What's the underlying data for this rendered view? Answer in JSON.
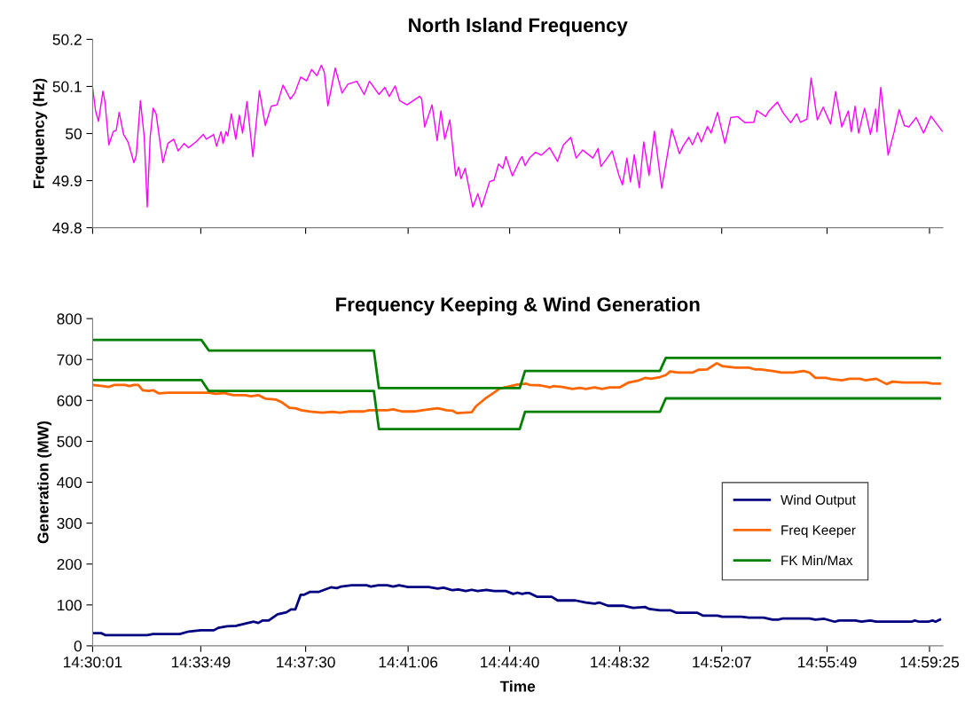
{
  "chart_data": [
    {
      "type": "line",
      "title": "North Island Frequency",
      "ylabel": "Frequency (Hz)",
      "tick_labels": "y",
      "xlim": [
        14.50028,
        14.99806
      ],
      "ylim": [
        49.8,
        50.2
      ],
      "yticks": [
        49.8,
        49.9,
        50,
        50.1,
        50.2
      ],
      "xticks": [
        {
          "value": 14.50028,
          "label": null
        },
        {
          "value": 14.56361,
          "label": null
        },
        {
          "value": 14.625,
          "label": null
        },
        {
          "value": 14.685,
          "label": null
        },
        {
          "value": 14.74444,
          "label": null
        },
        {
          "value": 14.80889,
          "label": null
        },
        {
          "value": 14.86861,
          "label": null
        },
        {
          "value": 14.93028,
          "label": null
        },
        {
          "value": 14.99028,
          "label": null
        }
      ],
      "series": [
        {
          "color": "#ff00ff",
          "x": [
            14.50028,
            14.50199,
            14.50372,
            14.50631,
            14.50752,
            14.50977,
            14.51236,
            14.51409,
            14.51581,
            14.51841,
            14.521,
            14.52446,
            14.52584,
            14.52826,
            14.53051,
            14.53224,
            14.53397,
            14.5357,
            14.53742,
            14.5414,
            14.54434,
            14.54779,
            14.55038,
            14.55384,
            14.55643,
            14.56076,
            14.56508,
            14.56681,
            14.57113,
            14.57286,
            14.57544,
            14.57665,
            14.57838,
            14.57942,
            14.58149,
            14.58409,
            14.58616,
            14.58806,
            14.59066,
            14.59411,
            14.59792,
            14.60138,
            14.60483,
            14.60828,
            14.61174,
            14.61606,
            14.61866,
            14.62212,
            14.62557,
            14.6285,
            14.63161,
            14.63421,
            14.63594,
            14.63801,
            14.64234,
            14.64631,
            14.64977,
            14.65495,
            14.65927,
            14.66239,
            14.66791,
            14.67137,
            14.67397,
            14.67742,
            14.68002,
            14.68434,
            14.69177,
            14.69297,
            14.6947,
            14.69903,
            14.70197,
            14.70421,
            14.70646,
            14.7094,
            14.71286,
            14.71459,
            14.71597,
            14.71838,
            14.72287,
            14.72582,
            14.72806,
            14.73273,
            14.73532,
            14.73792,
            14.74051,
            14.74224,
            14.74604,
            14.75054,
            14.75175,
            14.75347,
            14.75607,
            14.75952,
            14.76297,
            14.76781,
            14.77248,
            14.77594,
            14.78026,
            14.78337,
            14.78717,
            14.79322,
            14.79616,
            14.79789,
            14.801,
            14.80446,
            14.80827,
            14.81051,
            14.8131,
            14.81517,
            14.81742,
            14.82036,
            14.82295,
            14.82606,
            14.82917,
            14.83349,
            14.83937,
            14.84387,
            14.84594,
            14.84939,
            14.85147,
            14.85458,
            14.85666,
            14.86028,
            14.86236,
            14.86617,
            14.87048,
            14.87394,
            14.87791,
            14.88223,
            14.88742,
            14.88915,
            14.89434,
            14.89607,
            14.90125,
            14.90436,
            14.90902,
            14.91248,
            14.91473,
            14.91853,
            14.92095,
            14.92459,
            14.92804,
            14.93236,
            14.9353,
            14.93892,
            14.94273,
            14.94446,
            14.9467,
            14.94878,
            14.95224,
            14.9557,
            14.95881,
            14.95949,
            14.96174,
            14.96606,
            14.96952,
            14.97246,
            14.97557,
            14.97816,
            14.98249,
            14.9868,
            14.99112,
            14.99458,
            14.99769
          ],
          "values": [
            50.098,
            50.048,
            50.026,
            50.09,
            50.067,
            49.976,
            50.004,
            50.007,
            50.045,
            49.998,
            49.982,
            49.938,
            49.954,
            50.07,
            49.992,
            49.844,
            49.992,
            50.054,
            50.042,
            49.938,
            49.979,
            49.988,
            49.963,
            49.979,
            49.97,
            49.982,
            49.998,
            49.988,
            49.998,
            49.973,
            50.004,
            49.979,
            50.004,
            49.995,
            50.042,
            49.988,
            50.039,
            50.001,
            50.068,
            49.951,
            50.091,
            50.017,
            50.058,
            50.061,
            50.103,
            50.073,
            50.086,
            50.12,
            50.112,
            50.136,
            50.123,
            50.145,
            50.13,
            50.059,
            50.139,
            50.086,
            50.105,
            50.111,
            50.083,
            50.111,
            50.083,
            50.098,
            50.079,
            50.101,
            50.07,
            50.061,
            50.079,
            50.073,
            50.014,
            50.061,
            49.985,
            50.048,
            49.988,
            50.029,
            49.91,
            49.929,
            49.904,
            49.926,
            49.844,
            49.872,
            49.844,
            49.898,
            49.901,
            49.935,
            49.926,
            49.951,
            49.91,
            49.945,
            49.951,
            49.932,
            49.948,
            49.96,
            49.954,
            49.97,
            49.941,
            49.976,
            49.992,
            49.948,
            49.965,
            49.948,
            49.968,
            49.93,
            49.945,
            49.963,
            49.913,
            49.891,
            49.948,
            49.897,
            49.955,
            49.885,
            49.982,
            49.911,
            50.005,
            49.884,
            50.01,
            49.957,
            49.973,
            49.992,
            49.976,
            50.002,
            49.982,
            50.015,
            50.001,
            50.045,
            49.979,
            50.034,
            50.036,
            50.023,
            50.024,
            50.049,
            50.036,
            50.047,
            50.067,
            50.045,
            50.023,
            50.042,
            50.024,
            50.031,
            50.118,
            50.029,
            50.056,
            50.02,
            50.089,
            50.014,
            50.048,
            50.004,
            50.058,
            50.001,
            50.054,
            49.998,
            50.052,
            50.004,
            50.098,
            49.954,
            50.003,
            50.051,
            50.017,
            50.014,
            50.034,
            50.001,
            50.037,
            50.02,
            50.005
          ]
        }
      ]
    },
    {
      "type": "line",
      "title": "Frequency Keeping & Wind Generation",
      "xlabel": "Time",
      "ylabel": "Generation (MW)",
      "legend": "center right",
      "xlim": [
        14.50028,
        14.99806
      ],
      "ylim": [
        0,
        800
      ],
      "yticks": [
        0,
        100,
        200,
        300,
        400,
        500,
        600,
        700,
        800
      ],
      "xticks": [
        {
          "value": 14.50028,
          "label": "14:30:01"
        },
        {
          "value": 14.56361,
          "label": "14:33:49"
        },
        {
          "value": 14.625,
          "label": "14:37:30"
        },
        {
          "value": 14.685,
          "label": "14:41:06"
        },
        {
          "value": 14.74444,
          "label": "14:44:40"
        },
        {
          "value": 14.80889,
          "label": "14:48:32"
        },
        {
          "value": 14.86861,
          "label": "14:52:07"
        },
        {
          "value": 14.93028,
          "label": "14:55:49"
        },
        {
          "value": 14.99028,
          "label": "14:59:25"
        }
      ],
      "series": [
        {
          "name": "Wind Output",
          "color": "#000080",
          "x": [
            14.50028,
            14.50531,
            14.50791,
            14.53221,
            14.53568,
            14.55129,
            14.5565,
            14.56344,
            14.57125,
            14.57385,
            14.57906,
            14.58426,
            14.5912,
            14.59467,
            14.59728,
            14.59988,
            14.60335,
            14.60855,
            14.61376,
            14.61636,
            14.61897,
            14.62209,
            14.62417,
            14.62764,
            14.63285,
            14.63979,
            14.64326,
            14.64586,
            14.65194,
            14.66061,
            14.66321,
            14.66755,
            14.67276,
            14.67623,
            14.6797,
            14.6849,
            14.69705,
            14.70226,
            14.70573,
            14.71093,
            14.7144,
            14.71874,
            14.72221,
            14.72568,
            14.73089,
            14.73522,
            14.74216,
            14.7465,
            14.74911,
            14.75171,
            14.75431,
            14.75605,
            14.76039,
            14.76906,
            14.77253,
            14.78294,
            14.78902,
            14.79422,
            14.79682,
            14.80203,
            14.81071,
            14.81678,
            14.82372,
            14.82632,
            14.8324,
            14.83847,
            14.84194,
            14.85409,
            14.85756,
            14.86623,
            14.86884,
            14.88011,
            14.88445,
            14.89313,
            14.89833,
            14.9018,
            14.90441,
            14.92002,
            14.92349,
            14.9287,
            14.93477,
            14.93737,
            14.94692,
            14.95039,
            14.95559,
            14.95907,
            14.97989,
            14.98162,
            14.98423,
            14.98943,
            14.99203,
            14.99377,
            14.99637
          ],
          "values": [
            31,
            31,
            26,
            26,
            29,
            29,
            35,
            38,
            38,
            44,
            48,
            49,
            56,
            59,
            56,
            62,
            62,
            77,
            82,
            89,
            89,
            125,
            125,
            132,
            132,
            143,
            141,
            145,
            148,
            148,
            145,
            148,
            148,
            145,
            148,
            144,
            144,
            140,
            142,
            136,
            138,
            134,
            137,
            134,
            137,
            134,
            134,
            127,
            130,
            127,
            129,
            129,
            120,
            120,
            111,
            111,
            106,
            103,
            106,
            98,
            98,
            93,
            95,
            90,
            87,
            87,
            81,
            81,
            74,
            74,
            71,
            71,
            69,
            69,
            64,
            64,
            67,
            67,
            64,
            66,
            59,
            62,
            62,
            59,
            62,
            59,
            59,
            62,
            59,
            59,
            62,
            59,
            64
          ]
        },
        {
          "name": "Freq Keeper",
          "color": "#ff6600",
          "x": [
            14.50028,
            14.50618,
            14.50965,
            14.51312,
            14.51919,
            14.5218,
            14.5244,
            14.527,
            14.5296,
            14.53307,
            14.53568,
            14.53915,
            14.54435,
            14.56865,
            14.57212,
            14.57732,
            14.58253,
            14.58947,
            14.59294,
            14.59728,
            14.60161,
            14.60769,
            14.61116,
            14.6155,
            14.61897,
            14.62244,
            14.62764,
            14.63458,
            14.64066,
            14.64499,
            14.6502,
            14.65888,
            14.66235,
            14.67276,
            14.67623,
            14.68143,
            14.68837,
            14.69532,
            14.70226,
            14.70746,
            14.71093,
            14.71353,
            14.72221,
            14.72481,
            14.73002,
            14.73522,
            14.7387,
            14.74911,
            14.75431,
            14.75605,
            14.76212,
            14.76819,
            14.76993,
            14.77513,
            14.78121,
            14.78555,
            14.78902,
            14.79422,
            14.79856,
            14.8029,
            14.80897,
            14.81418,
            14.81938,
            14.82372,
            14.82719,
            14.8324,
            14.83587,
            14.83847,
            14.84281,
            14.85148,
            14.85495,
            14.86016,
            14.86571,
            14.86884,
            14.87664,
            14.88445,
            14.88792,
            14.89139,
            14.89833,
            14.90354,
            14.91048,
            14.91655,
            14.92002,
            14.92349,
            14.92957,
            14.93304,
            14.93911,
            14.94345,
            14.94952,
            14.95299,
            14.95907,
            14.96514,
            14.96861,
            14.97468,
            14.98856,
            14.99203,
            14.99637
          ],
          "values": [
            638,
            635,
            633,
            638,
            638,
            635,
            638,
            638,
            625,
            623,
            625,
            617,
            619,
            619,
            616,
            618,
            613,
            613,
            610,
            613,
            604,
            602,
            595,
            582,
            581,
            576,
            573,
            570,
            572,
            570,
            573,
            573,
            576,
            576,
            578,
            573,
            573,
            577,
            581,
            576,
            575,
            569,
            571,
            586,
            604,
            619,
            629,
            639,
            641,
            638,
            637,
            632,
            635,
            633,
            628,
            631,
            628,
            632,
            628,
            632,
            632,
            644,
            648,
            655,
            653,
            657,
            662,
            671,
            668,
            668,
            675,
            676,
            691,
            684,
            680,
            680,
            676,
            676,
            672,
            668,
            668,
            672,
            668,
            655,
            655,
            652,
            649,
            653,
            653,
            649,
            653,
            640,
            646,
            644,
            644,
            641,
            641
          ]
        },
        {
          "name": "FK Min/Max",
          "color": "#008000",
          "x": [
            14.50028,
            14.56396,
            14.5683,
            14.66495,
            14.6679,
            14.75032,
            14.75344,
            14.8324,
            14.83587,
            14.99637
          ],
          "values": [
            748,
            748,
            722,
            722,
            630,
            630,
            672,
            672,
            704,
            704
          ]
        },
        {
          "color": "#008000",
          "x": [
            14.50028,
            14.56396,
            14.5683,
            14.66495,
            14.6679,
            14.75032,
            14.75344,
            14.8324,
            14.83587,
            14.99637
          ],
          "values": [
            650,
            650,
            623,
            623,
            530,
            530,
            572,
            572,
            605,
            605
          ]
        }
      ]
    }
  ]
}
